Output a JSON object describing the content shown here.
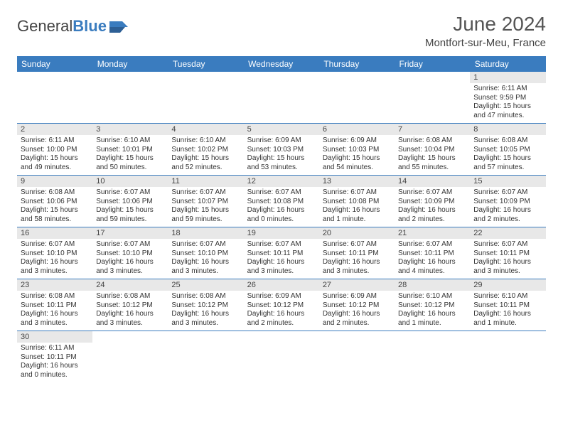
{
  "logo": {
    "text1": "General",
    "text2": "Blue"
  },
  "title": "June 2024",
  "location": "Montfort-sur-Meu, France",
  "colors": {
    "header_bg": "#3a7cbf",
    "daynum_bg": "#e8e8e8",
    "border": "#3a7cbf"
  },
  "weekdays": [
    "Sunday",
    "Monday",
    "Tuesday",
    "Wednesday",
    "Thursday",
    "Friday",
    "Saturday"
  ],
  "weeks": [
    [
      null,
      null,
      null,
      null,
      null,
      null,
      {
        "n": "1",
        "sr": "Sunrise: 6:11 AM",
        "ss": "Sunset: 9:59 PM",
        "d1": "Daylight: 15 hours",
        "d2": "and 47 minutes."
      }
    ],
    [
      {
        "n": "2",
        "sr": "Sunrise: 6:11 AM",
        "ss": "Sunset: 10:00 PM",
        "d1": "Daylight: 15 hours",
        "d2": "and 49 minutes."
      },
      {
        "n": "3",
        "sr": "Sunrise: 6:10 AM",
        "ss": "Sunset: 10:01 PM",
        "d1": "Daylight: 15 hours",
        "d2": "and 50 minutes."
      },
      {
        "n": "4",
        "sr": "Sunrise: 6:10 AM",
        "ss": "Sunset: 10:02 PM",
        "d1": "Daylight: 15 hours",
        "d2": "and 52 minutes."
      },
      {
        "n": "5",
        "sr": "Sunrise: 6:09 AM",
        "ss": "Sunset: 10:03 PM",
        "d1": "Daylight: 15 hours",
        "d2": "and 53 minutes."
      },
      {
        "n": "6",
        "sr": "Sunrise: 6:09 AM",
        "ss": "Sunset: 10:03 PM",
        "d1": "Daylight: 15 hours",
        "d2": "and 54 minutes."
      },
      {
        "n": "7",
        "sr": "Sunrise: 6:08 AM",
        "ss": "Sunset: 10:04 PM",
        "d1": "Daylight: 15 hours",
        "d2": "and 55 minutes."
      },
      {
        "n": "8",
        "sr": "Sunrise: 6:08 AM",
        "ss": "Sunset: 10:05 PM",
        "d1": "Daylight: 15 hours",
        "d2": "and 57 minutes."
      }
    ],
    [
      {
        "n": "9",
        "sr": "Sunrise: 6:08 AM",
        "ss": "Sunset: 10:06 PM",
        "d1": "Daylight: 15 hours",
        "d2": "and 58 minutes."
      },
      {
        "n": "10",
        "sr": "Sunrise: 6:07 AM",
        "ss": "Sunset: 10:06 PM",
        "d1": "Daylight: 15 hours",
        "d2": "and 59 minutes."
      },
      {
        "n": "11",
        "sr": "Sunrise: 6:07 AM",
        "ss": "Sunset: 10:07 PM",
        "d1": "Daylight: 15 hours",
        "d2": "and 59 minutes."
      },
      {
        "n": "12",
        "sr": "Sunrise: 6:07 AM",
        "ss": "Sunset: 10:08 PM",
        "d1": "Daylight: 16 hours",
        "d2": "and 0 minutes."
      },
      {
        "n": "13",
        "sr": "Sunrise: 6:07 AM",
        "ss": "Sunset: 10:08 PM",
        "d1": "Daylight: 16 hours",
        "d2": "and 1 minute."
      },
      {
        "n": "14",
        "sr": "Sunrise: 6:07 AM",
        "ss": "Sunset: 10:09 PM",
        "d1": "Daylight: 16 hours",
        "d2": "and 2 minutes."
      },
      {
        "n": "15",
        "sr": "Sunrise: 6:07 AM",
        "ss": "Sunset: 10:09 PM",
        "d1": "Daylight: 16 hours",
        "d2": "and 2 minutes."
      }
    ],
    [
      {
        "n": "16",
        "sr": "Sunrise: 6:07 AM",
        "ss": "Sunset: 10:10 PM",
        "d1": "Daylight: 16 hours",
        "d2": "and 3 minutes."
      },
      {
        "n": "17",
        "sr": "Sunrise: 6:07 AM",
        "ss": "Sunset: 10:10 PM",
        "d1": "Daylight: 16 hours",
        "d2": "and 3 minutes."
      },
      {
        "n": "18",
        "sr": "Sunrise: 6:07 AM",
        "ss": "Sunset: 10:10 PM",
        "d1": "Daylight: 16 hours",
        "d2": "and 3 minutes."
      },
      {
        "n": "19",
        "sr": "Sunrise: 6:07 AM",
        "ss": "Sunset: 10:11 PM",
        "d1": "Daylight: 16 hours",
        "d2": "and 3 minutes."
      },
      {
        "n": "20",
        "sr": "Sunrise: 6:07 AM",
        "ss": "Sunset: 10:11 PM",
        "d1": "Daylight: 16 hours",
        "d2": "and 3 minutes."
      },
      {
        "n": "21",
        "sr": "Sunrise: 6:07 AM",
        "ss": "Sunset: 10:11 PM",
        "d1": "Daylight: 16 hours",
        "d2": "and 4 minutes."
      },
      {
        "n": "22",
        "sr": "Sunrise: 6:07 AM",
        "ss": "Sunset: 10:11 PM",
        "d1": "Daylight: 16 hours",
        "d2": "and 3 minutes."
      }
    ],
    [
      {
        "n": "23",
        "sr": "Sunrise: 6:08 AM",
        "ss": "Sunset: 10:11 PM",
        "d1": "Daylight: 16 hours",
        "d2": "and 3 minutes."
      },
      {
        "n": "24",
        "sr": "Sunrise: 6:08 AM",
        "ss": "Sunset: 10:12 PM",
        "d1": "Daylight: 16 hours",
        "d2": "and 3 minutes."
      },
      {
        "n": "25",
        "sr": "Sunrise: 6:08 AM",
        "ss": "Sunset: 10:12 PM",
        "d1": "Daylight: 16 hours",
        "d2": "and 3 minutes."
      },
      {
        "n": "26",
        "sr": "Sunrise: 6:09 AM",
        "ss": "Sunset: 10:12 PM",
        "d1": "Daylight: 16 hours",
        "d2": "and 2 minutes."
      },
      {
        "n": "27",
        "sr": "Sunrise: 6:09 AM",
        "ss": "Sunset: 10:12 PM",
        "d1": "Daylight: 16 hours",
        "d2": "and 2 minutes."
      },
      {
        "n": "28",
        "sr": "Sunrise: 6:10 AM",
        "ss": "Sunset: 10:12 PM",
        "d1": "Daylight: 16 hours",
        "d2": "and 1 minute."
      },
      {
        "n": "29",
        "sr": "Sunrise: 6:10 AM",
        "ss": "Sunset: 10:11 PM",
        "d1": "Daylight: 16 hours",
        "d2": "and 1 minute."
      }
    ],
    [
      {
        "n": "30",
        "sr": "Sunrise: 6:11 AM",
        "ss": "Sunset: 10:11 PM",
        "d1": "Daylight: 16 hours",
        "d2": "and 0 minutes."
      },
      null,
      null,
      null,
      null,
      null,
      null
    ]
  ]
}
